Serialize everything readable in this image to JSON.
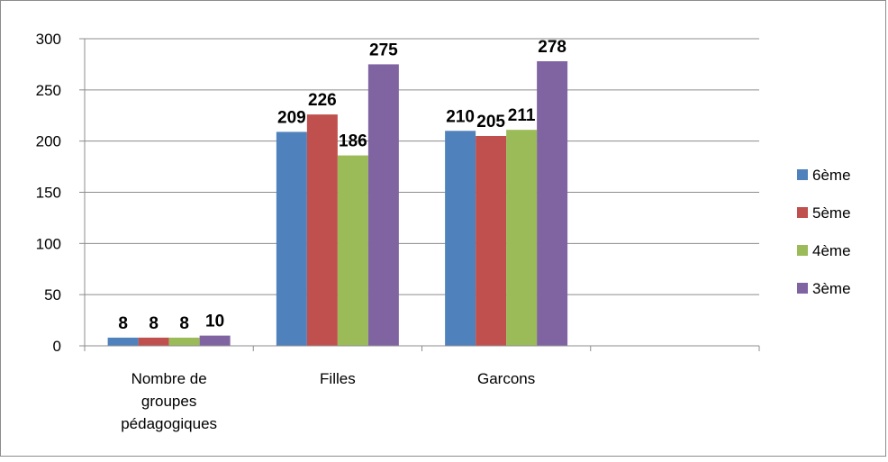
{
  "chart_data": {
    "type": "bar",
    "title": "",
    "xlabel": "",
    "ylabel": "",
    "ylim": [
      0,
      300
    ],
    "ytick_step": 50,
    "yticks": [
      "0",
      "50",
      "100",
      "150",
      "200",
      "250",
      "300"
    ],
    "categories": [
      "Nombre de groupes pédagogiques",
      "Filles",
      "Garcons",
      ""
    ],
    "category_label_lines": [
      [
        "Nombre de",
        "groupes",
        "pédagogiques"
      ],
      [
        "Filles"
      ],
      [
        "Garcons"
      ],
      []
    ],
    "series": [
      {
        "name": "6ème",
        "color": "#4f81bd",
        "values": [
          8,
          209,
          210,
          null
        ]
      },
      {
        "name": "5ème",
        "color": "#c0504d",
        "values": [
          8,
          226,
          205,
          null
        ]
      },
      {
        "name": "4ème",
        "color": "#9bbb59",
        "values": [
          8,
          186,
          211,
          null
        ]
      },
      {
        "name": "3ème",
        "color": "#8064a2",
        "values": [
          10,
          275,
          278,
          null
        ]
      }
    ],
    "data_labels": true,
    "grid": true,
    "legend_position": "right"
  }
}
